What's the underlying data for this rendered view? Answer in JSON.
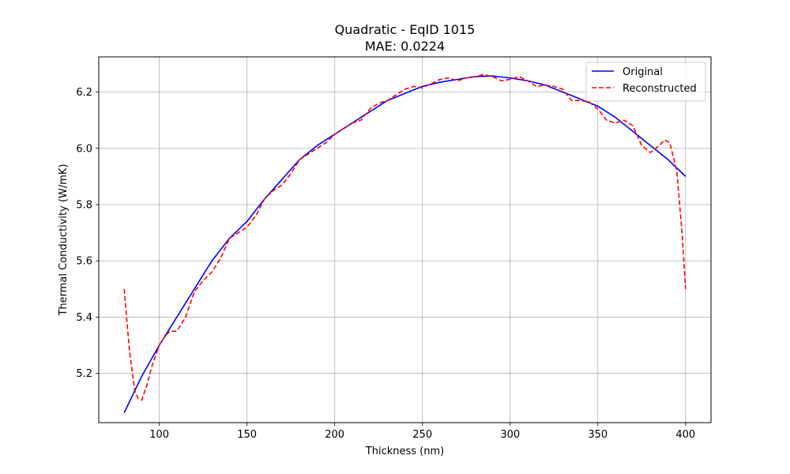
{
  "chart_data": {
    "type": "line",
    "title": "Quadratic - EqID 1015",
    "subtitle": "MAE: 0.0224",
    "xlabel": "Thickness (nm)",
    "ylabel": "Thermal Conductivity (W/mK)",
    "xlim": [
      65.5,
      414.5
    ],
    "ylim": [
      5.025,
      6.325
    ],
    "x_ticks": [
      100,
      150,
      200,
      250,
      300,
      350,
      400
    ],
    "y_ticks": [
      5.2,
      5.4,
      5.6,
      5.8,
      6.0,
      6.2
    ],
    "grid": true,
    "legend_position": "top-right",
    "series": [
      {
        "name": "Original",
        "color": "#0000ff",
        "style": "solid",
        "x": [
          80,
          90,
          100,
          110,
          120,
          130,
          140,
          150,
          160,
          170,
          180,
          190,
          200,
          210,
          220,
          230,
          240,
          250,
          260,
          270,
          280,
          290,
          300,
          310,
          320,
          330,
          340,
          350,
          360,
          370,
          380,
          390,
          400
        ],
        "y": [
          5.06,
          5.19,
          5.3,
          5.4,
          5.5,
          5.6,
          5.68,
          5.74,
          5.82,
          5.89,
          5.96,
          6.01,
          6.05,
          6.09,
          6.13,
          6.17,
          6.195,
          6.22,
          6.235,
          6.245,
          6.255,
          6.257,
          6.25,
          6.24,
          6.225,
          6.2,
          6.175,
          6.15,
          6.11,
          6.06,
          6.01,
          5.96,
          5.9
        ]
      },
      {
        "name": "Reconstructed",
        "color": "#ff0000",
        "style": "dashed",
        "x": [
          80,
          83,
          86,
          88,
          90,
          93,
          96,
          100,
          103,
          106,
          110,
          115,
          120,
          125,
          130,
          135,
          140,
          145,
          150,
          155,
          160,
          165,
          170,
          175,
          180,
          185,
          190,
          195,
          200,
          205,
          210,
          215,
          220,
          225,
          230,
          235,
          240,
          245,
          250,
          255,
          260,
          265,
          270,
          275,
          280,
          285,
          290,
          295,
          300,
          305,
          310,
          315,
          320,
          325,
          330,
          335,
          340,
          345,
          350,
          355,
          360,
          365,
          370,
          375,
          380,
          385,
          388,
          391,
          395,
          398,
          400
        ],
        "y": [
          5.5,
          5.28,
          5.14,
          5.11,
          5.105,
          5.16,
          5.23,
          5.3,
          5.33,
          5.35,
          5.35,
          5.4,
          5.49,
          5.53,
          5.56,
          5.61,
          5.68,
          5.7,
          5.72,
          5.76,
          5.82,
          5.85,
          5.87,
          5.91,
          5.96,
          5.98,
          6.0,
          6.02,
          6.05,
          6.07,
          6.09,
          6.1,
          6.14,
          6.16,
          6.17,
          6.19,
          6.21,
          6.22,
          6.215,
          6.23,
          6.245,
          6.25,
          6.24,
          6.25,
          6.255,
          6.262,
          6.255,
          6.24,
          6.245,
          6.255,
          6.24,
          6.22,
          6.225,
          6.22,
          6.21,
          6.17,
          6.17,
          6.165,
          6.14,
          6.1,
          6.09,
          6.1,
          6.08,
          6.01,
          5.985,
          6.01,
          6.03,
          6.02,
          5.92,
          5.7,
          5.5
        ]
      }
    ]
  }
}
